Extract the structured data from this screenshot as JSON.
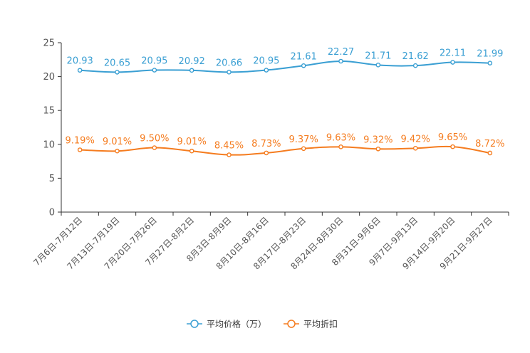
{
  "chart_data": {
    "type": "line",
    "title": "",
    "xlabel": "",
    "ylabel": "",
    "ylim": [
      0,
      25
    ],
    "yticks": [
      0,
      5,
      10,
      15,
      20,
      25
    ],
    "grid": false,
    "legend_position": "bottom-center",
    "categories": [
      "7月6日-7月12日",
      "7月13日-7月19日",
      "7月20日-7月26日",
      "7月27日-8月2日",
      "8月3日-8月9日",
      "8月10日-8月16日",
      "8月17日-8月23日",
      "8月24日-8月30日",
      "8月31日-9月6日",
      "9月7日-9月13日",
      "9月14日-9月20日",
      "9月21日-9月27日"
    ],
    "series": [
      {
        "name": "平均价格（万）",
        "color": "#3a9fd3",
        "values": [
          20.93,
          20.65,
          20.95,
          20.92,
          20.66,
          20.95,
          21.61,
          22.27,
          21.71,
          21.62,
          22.11,
          21.99
        ],
        "labels": [
          "20.93",
          "20.65",
          "20.95",
          "20.92",
          "20.66",
          "20.95",
          "21.61",
          "22.27",
          "21.71",
          "21.62",
          "22.11",
          "21.99"
        ]
      },
      {
        "name": "平均折扣",
        "color": "#f57c1f",
        "values": [
          9.19,
          9.01,
          9.5,
          9.01,
          8.45,
          8.73,
          9.37,
          9.63,
          9.32,
          9.42,
          9.65,
          8.72
        ],
        "labels": [
          "9.19%",
          "9.01%",
          "9.50%",
          "9.01%",
          "8.45%",
          "8.73%",
          "9.37%",
          "9.63%",
          "9.32%",
          "9.42%",
          "9.65%",
          "8.72%"
        ]
      }
    ]
  }
}
